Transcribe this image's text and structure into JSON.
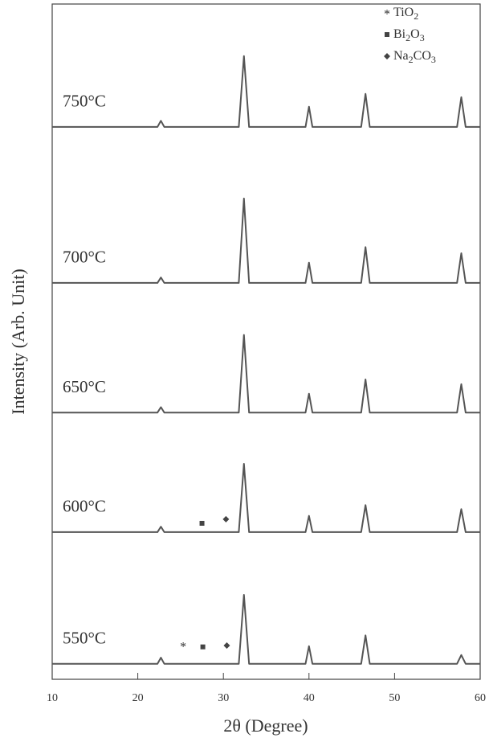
{
  "chart_data": {
    "type": "line",
    "x_label": "2θ (Degree)",
    "y_label": "Intensity (Arb. Unit)",
    "x": [
      10,
      22.3,
      22.7,
      23.1,
      31.8,
      32.4,
      33.0,
      39.6,
      40.0,
      40.4,
      46.1,
      46.6,
      47.1,
      57.3,
      57.8,
      58.3,
      60
    ],
    "xlim": [
      10,
      60
    ],
    "xticks": [
      10,
      20,
      30,
      40,
      50,
      60
    ],
    "ylim": [
      0,
      100
    ],
    "series": [
      {
        "name": "750°C",
        "color": "#555555",
        "values": [
          81.8,
          81.8,
          82.7,
          81.8,
          81.8,
          92.3,
          81.8,
          81.8,
          84.8,
          81.8,
          81.8,
          86.7,
          81.8,
          81.8,
          86.2,
          81.8,
          81.8
        ]
      },
      {
        "name": "700°C",
        "color": "#555555",
        "values": [
          58.7,
          58.7,
          59.5,
          58.7,
          58.7,
          71.2,
          58.7,
          58.7,
          61.7,
          58.7,
          58.7,
          64,
          58.7,
          58.7,
          63.1,
          58.7,
          58.7
        ]
      },
      {
        "name": "650°C",
        "color": "#555555",
        "values": [
          39.5,
          39.5,
          40.3,
          39.5,
          39.5,
          51,
          39.5,
          39.5,
          42.3,
          39.5,
          39.5,
          44.4,
          39.5,
          39.5,
          43.7,
          39.5,
          39.5
        ]
      },
      {
        "name": "600°C",
        "color": "#555555",
        "values": [
          21.8,
          21.8,
          22.6,
          21.8,
          21.8,
          31.9,
          21.8,
          21.8,
          24.2,
          21.8,
          21.8,
          25.8,
          21.8,
          21.8,
          25.2,
          21.8,
          21.8
        ]
      },
      {
        "name": "550°C",
        "color": "#555555",
        "values": [
          2.3,
          2.3,
          3.2,
          2.3,
          2.3,
          12.5,
          2.3,
          2.3,
          4.9,
          2.3,
          2.3,
          6.5,
          2.3,
          2.3,
          3.6,
          2.3,
          2.3
        ]
      }
    ],
    "phases": [
      {
        "name": "TiO2",
        "marker": "star"
      },
      {
        "name": "Bi2O3",
        "marker": "square"
      },
      {
        "name": "Na2CO3",
        "marker": "diamond"
      }
    ],
    "phase_marks": [
      {
        "phase": 1,
        "x": 27.5,
        "y": 23.1
      },
      {
        "phase": 2,
        "x": 30.3,
        "y": 23.7
      },
      {
        "phase": 0,
        "x": 25.3,
        "y": 5.0
      },
      {
        "phase": 1,
        "x": 27.6,
        "y": 4.8
      },
      {
        "phase": 2,
        "x": 30.4,
        "y": 5.0
      }
    ]
  }
}
